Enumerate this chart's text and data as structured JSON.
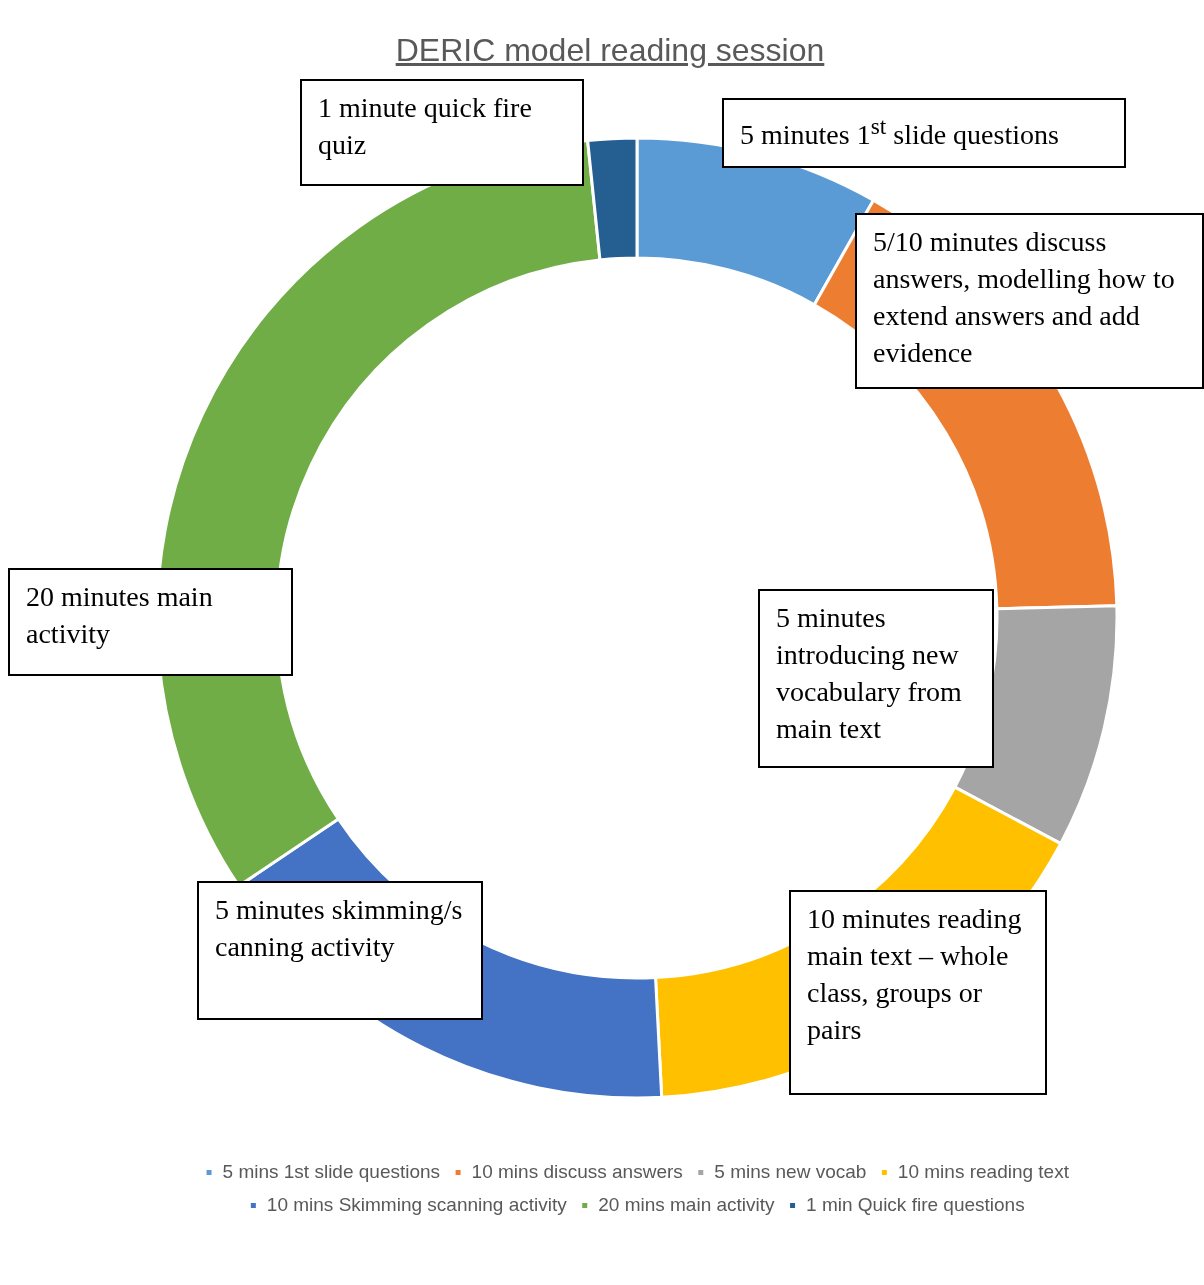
{
  "chart_data": {
    "type": "donut",
    "title": "DERIC model reading session",
    "categories": [
      "5 mins 1st slide questions",
      "10 mins discuss answers",
      "5 mins new vocab",
      "10 mins reading text",
      "10 mins Skimming scanning activity",
      "20 mins main activity",
      "1 min Quick fire questions"
    ],
    "values": [
      5,
      10,
      5,
      10,
      10,
      20,
      1
    ],
    "colors": [
      "#5b9bd5",
      "#ed7d31",
      "#a5a5a5",
      "#ffc000",
      "#4472c4",
      "#70ad47",
      "#255e91"
    ],
    "legend": "bottom",
    "annotations": [
      "5 minutes 1$^{st}$ slide questions",
      "5/10 minutes discuss answers, modelling how to extend answers and add evidence",
      "5 minutes introducing new vocabulary from main text",
      "10 minutes reading main text – whole class, groups or pairs",
      "5 minutes skimming/scanning activity",
      "20 minutes main activity",
      "1 minute quick fire quiz"
    ]
  }
}
